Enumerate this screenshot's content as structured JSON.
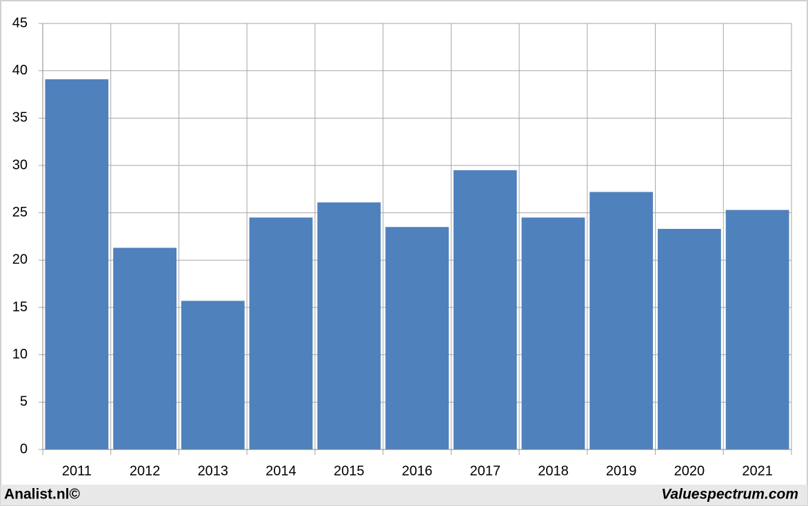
{
  "chart_data": {
    "type": "bar",
    "categories": [
      "2011",
      "2012",
      "2013",
      "2014",
      "2015",
      "2016",
      "2017",
      "2018",
      "2019",
      "2020",
      "2021"
    ],
    "values": [
      39.1,
      21.3,
      15.7,
      24.5,
      26.1,
      23.5,
      29.5,
      24.5,
      27.2,
      23.3,
      25.3
    ],
    "color": "#4f81bd",
    "ylim": [
      0,
      45
    ],
    "yticks": [
      0,
      5,
      10,
      15,
      20,
      25,
      30,
      35,
      40,
      45
    ],
    "grid": true,
    "footer_left": "Analist.nl©",
    "footer_right": "Valuespectrum.com"
  }
}
